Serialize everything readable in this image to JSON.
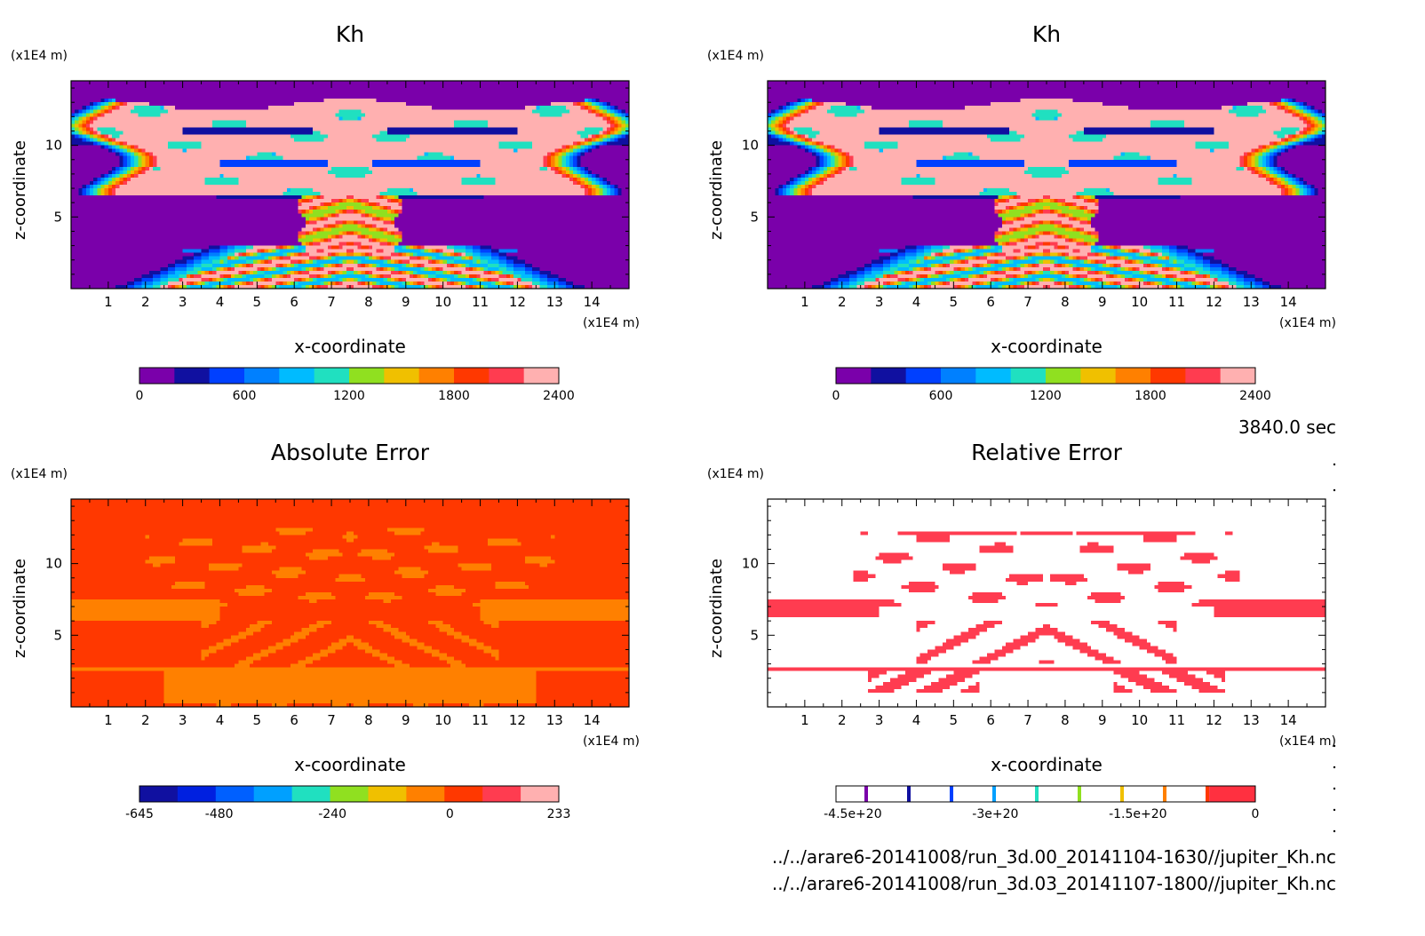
{
  "time_label": "3840.0 sec",
  "files": [
    "../../arare6-20141008/run_3d.00_20141104-1630//jupiter_Kh.nc",
    "../../arare6-20141008/run_3d.03_20141107-1800//jupiter_Kh.nc"
  ],
  "chart_data": [
    {
      "type": "heatmap",
      "title": "Kh",
      "xlabel": "x-coordinate",
      "ylabel": "z-coordinate",
      "x_unit": "(x1E4 m)",
      "y_unit": "(x1E4 m)",
      "xlim": [
        0,
        15
      ],
      "ylim": [
        0,
        14.5
      ],
      "x_ticks": [
        "1",
        "2",
        "3",
        "4",
        "5",
        "6",
        "7",
        "8",
        "9",
        "10",
        "11",
        "12",
        "13",
        "14"
      ],
      "y_ticks": [
        "5",
        "10"
      ],
      "colorbar_ticks": [
        "0",
        "600",
        "1200",
        "1800",
        "2400"
      ],
      "background_level_color": "#7700aa",
      "colors": [
        "#7a00aa",
        "#1010a0",
        "#0040ff",
        "#0080ff",
        "#00bbff",
        "#20e0c0",
        "#90e020",
        "#f0c000",
        "#ff8000",
        "#ff3800",
        "#ff3c50",
        "#ffb0b0"
      ]
    },
    {
      "type": "heatmap",
      "title": "Kh",
      "xlabel": "x-coordinate",
      "ylabel": "z-coordinate",
      "x_unit": "(x1E4 m)",
      "y_unit": "(x1E4 m)",
      "xlim": [
        0,
        15
      ],
      "ylim": [
        0,
        14.5
      ],
      "x_ticks": [
        "1",
        "2",
        "3",
        "4",
        "5",
        "6",
        "7",
        "8",
        "9",
        "10",
        "11",
        "12",
        "13",
        "14"
      ],
      "y_ticks": [
        "5",
        "10"
      ],
      "colorbar_ticks": [
        "0",
        "600",
        "1200",
        "1800",
        "2400"
      ],
      "colors": [
        "#7a00aa",
        "#1010a0",
        "#0040ff",
        "#0080ff",
        "#00bbff",
        "#20e0c0",
        "#90e020",
        "#f0c000",
        "#ff8000",
        "#ff3800",
        "#ff3c50",
        "#ffb0b0"
      ]
    },
    {
      "type": "heatmap",
      "title": "Absolute Error",
      "xlabel": "x-coordinate",
      "ylabel": "z-coordinate",
      "x_unit": "(x1E4 m)",
      "y_unit": "(x1E4 m)",
      "xlim": [
        0,
        15
      ],
      "ylim": [
        0,
        14.5
      ],
      "x_ticks": [
        "1",
        "2",
        "3",
        "4",
        "5",
        "6",
        "7",
        "8",
        "9",
        "10",
        "11",
        "12",
        "13",
        "14"
      ],
      "y_ticks": [
        "5",
        "10"
      ],
      "colorbar_ticks": [
        "-645",
        "-480",
        "-240",
        "0",
        "233"
      ],
      "colors": [
        "#1010a0",
        "#0020e0",
        "#0060ff",
        "#00a0ff",
        "#20e0c0",
        "#90e020",
        "#f0c000",
        "#ff8000",
        "#ff3800",
        "#ff3c50",
        "#ffb0b0"
      ]
    },
    {
      "type": "heatmap",
      "title": "Relative Error",
      "xlabel": "x-coordinate",
      "ylabel": "z-coordinate",
      "x_unit": "(x1E4 m)",
      "y_unit": "(x1E4 m)",
      "xlim": [
        0,
        15
      ],
      "ylim": [
        0,
        14.5
      ],
      "x_ticks": [
        "1",
        "2",
        "3",
        "4",
        "5",
        "6",
        "7",
        "8",
        "9",
        "10",
        "11",
        "12",
        "13",
        "14"
      ],
      "y_ticks": [
        "5",
        "10"
      ],
      "colorbar_ticks": [
        "-4.5e+20",
        "-3e+20",
        "-1.5e+20",
        "0"
      ],
      "colors": [
        "#7a00aa",
        "#1010a0",
        "#0040ff",
        "#00a0ff",
        "#20e0c0",
        "#90e020",
        "#f0c000",
        "#ff8000",
        "#ff3800",
        "#ff3c50",
        "#ffffff"
      ]
    }
  ]
}
